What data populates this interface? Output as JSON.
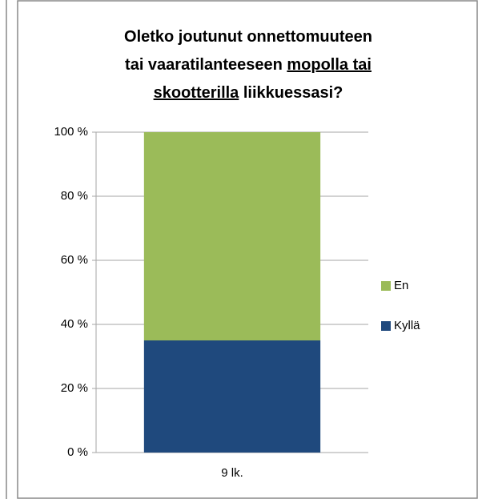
{
  "chart_data": {
    "type": "stacked_bar",
    "title": [
      [
        "Oletko joutunut onnettomuuteen"
      ],
      [
        "tai vaaratilanteeseen ",
        "mopolla tai"
      ],
      [
        "skootterilla",
        " liikkuessasi?"
      ]
    ],
    "categories": [
      "9 lk."
    ],
    "series": [
      {
        "name": "Kyllä",
        "color": "#1f497d",
        "values": [
          35
        ]
      },
      {
        "name": "En",
        "color": "#9bbb59",
        "values": [
          65
        ]
      }
    ],
    "ylim": [
      0,
      100
    ],
    "yticks": [
      {
        "value": 0,
        "label": "0 %"
      },
      {
        "value": 20,
        "label": "20 %"
      },
      {
        "value": 40,
        "label": "40 %"
      },
      {
        "value": 60,
        "label": "60 %"
      },
      {
        "value": 80,
        "label": "80 %"
      },
      {
        "value": 100,
        "label": "100 %"
      }
    ],
    "grid": true,
    "legend": "right"
  }
}
